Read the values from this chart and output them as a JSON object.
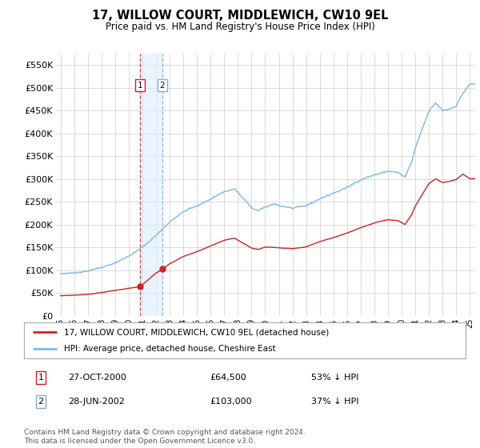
{
  "title": "17, WILLOW COURT, MIDDLEWICH, CW10 9EL",
  "subtitle": "Price paid vs. HM Land Registry's House Price Index (HPI)",
  "footer": "Contains HM Land Registry data © Crown copyright and database right 2024.\nThis data is licensed under the Open Government Licence v3.0.",
  "legend_line1": "17, WILLOW COURT, MIDDLEWICH, CW10 9EL (detached house)",
  "legend_line2": "HPI: Average price, detached house, Cheshire East",
  "transaction1_date": "27-OCT-2000",
  "transaction1_price": "£64,500",
  "transaction1_hpi": "53% ↓ HPI",
  "transaction2_date": "28-JUN-2002",
  "transaction2_price": "£103,000",
  "transaction2_hpi": "37% ↓ HPI",
  "ylim": [
    0,
    575000
  ],
  "yticks": [
    0,
    50000,
    100000,
    150000,
    200000,
    250000,
    300000,
    350000,
    400000,
    450000,
    500000,
    550000
  ],
  "hpi_color": "#7ab8e8",
  "price_color": "#cc2222",
  "vline1_color": "#cc2222",
  "vline2_color": "#88aacc",
  "vshade_color": "#ddeeff",
  "marker_color": "#cc2222",
  "background_color": "#ffffff",
  "grid_color": "#cccccc",
  "transaction1_x": 2000.81,
  "transaction2_x": 2002.46,
  "transaction1_y": 64500,
  "transaction2_y": 103000,
  "vline1_x": 2000.81,
  "vline2_x": 2002.46,
  "vshade_x1": 2000.81,
  "vshade_x2": 2002.46,
  "xlim_left": 1994.6,
  "xlim_right": 2025.4
}
